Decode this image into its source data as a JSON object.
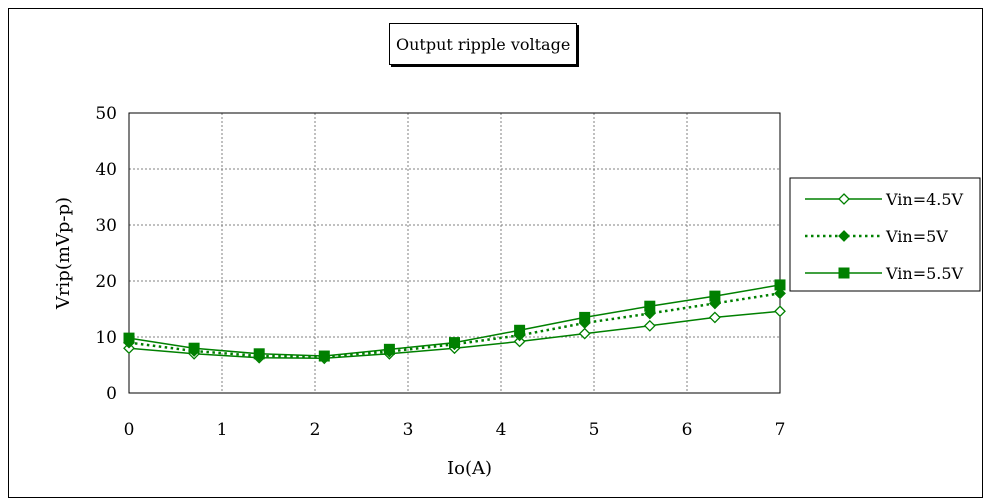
{
  "chart_data": {
    "type": "line",
    "title": "Output ripple voltage",
    "xlabel": "Io(A)",
    "ylabel": "Vrip(mVp-p)",
    "xlim": [
      0,
      7
    ],
    "ylim": [
      0,
      50
    ],
    "xticks": [
      "0",
      "1",
      "2",
      "3",
      "4",
      "5",
      "6",
      "7"
    ],
    "yticks": [
      "0",
      "10",
      "20",
      "30",
      "40",
      "50"
    ],
    "grid": true,
    "legend_position": "right",
    "x": [
      0,
      0.7,
      1.4,
      2.1,
      2.8,
      3.5,
      4.2,
      4.9,
      5.6,
      6.3,
      7
    ],
    "series": [
      {
        "name": "Vin=4.5V",
        "marker": "diamond-open",
        "line": "solid",
        "color": "#008000",
        "values": [
          8.0,
          7.0,
          6.3,
          6.2,
          7.0,
          8.0,
          9.2,
          10.6,
          12.0,
          13.5,
          14.6
        ]
      },
      {
        "name": "Vin=5V",
        "marker": "diamond-filled",
        "line": "dotted",
        "color": "#008000",
        "values": [
          9.0,
          7.5,
          6.6,
          6.5,
          7.4,
          8.7,
          10.3,
          12.5,
          14.2,
          16.0,
          17.8
        ]
      },
      {
        "name": "Vin=5.5V",
        "marker": "square-filled",
        "line": "solid",
        "color": "#008000",
        "values": [
          9.8,
          8.0,
          7.0,
          6.6,
          7.8,
          9.0,
          11.2,
          13.5,
          15.5,
          17.3,
          19.3
        ]
      }
    ]
  }
}
